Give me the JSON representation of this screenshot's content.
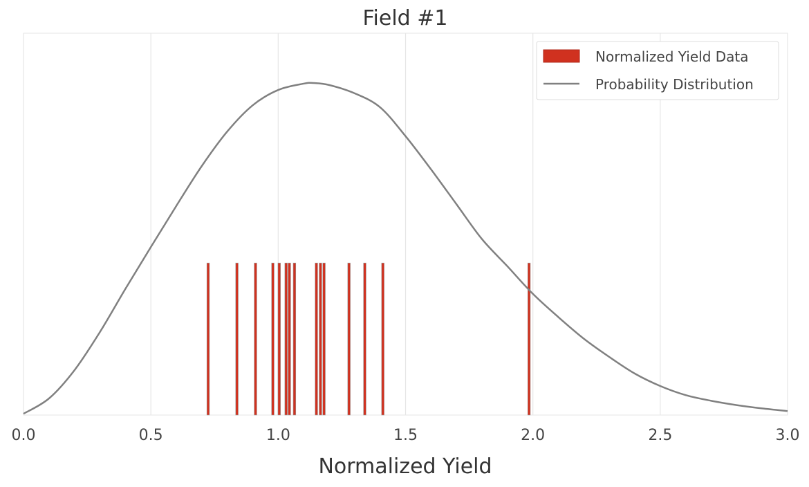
{
  "chart_data": {
    "type": "bar+line",
    "title": "Field #1",
    "xlabel": "Normalized Yield",
    "ylabel": "",
    "xlim": [
      0.0,
      3.0
    ],
    "ylim": [
      0,
      1.15
    ],
    "xticks": [
      "0.0",
      "0.5",
      "1.0",
      "1.5",
      "2.0",
      "2.5",
      "3.0"
    ],
    "yticks": [],
    "grid": "vertical",
    "legend_position": "top-right",
    "series": [
      {
        "name": "Normalized Yield Data",
        "kind": "bar",
        "color": "#d0311f",
        "bar_width": 0.01,
        "height": 0.458,
        "x": [
          0.725,
          0.838,
          0.911,
          0.979,
          1.004,
          1.031,
          1.044,
          1.064,
          1.15,
          1.166,
          1.18,
          1.278,
          1.34,
          1.411,
          1.985
        ]
      },
      {
        "name": "Probability Distribution",
        "kind": "line",
        "color": "#808080",
        "x": [
          0.0,
          0.1,
          0.2,
          0.3,
          0.4,
          0.5,
          0.6,
          0.7,
          0.8,
          0.9,
          1.0,
          1.1,
          1.14,
          1.2,
          1.3,
          1.4,
          1.5,
          1.6,
          1.7,
          1.8,
          1.9,
          2.0,
          2.1,
          2.2,
          2.3,
          2.4,
          2.5,
          2.6,
          2.7,
          2.8,
          2.9,
          3.0
        ],
        "y": [
          0.004,
          0.05,
          0.135,
          0.25,
          0.38,
          0.506,
          0.63,
          0.75,
          0.854,
          0.933,
          0.979,
          0.998,
          1.0,
          0.994,
          0.969,
          0.927,
          0.84,
          0.74,
          0.635,
          0.53,
          0.448,
          0.365,
          0.295,
          0.23,
          0.175,
          0.125,
          0.0875,
          0.06,
          0.043,
          0.03,
          0.02,
          0.012
        ]
      }
    ]
  }
}
